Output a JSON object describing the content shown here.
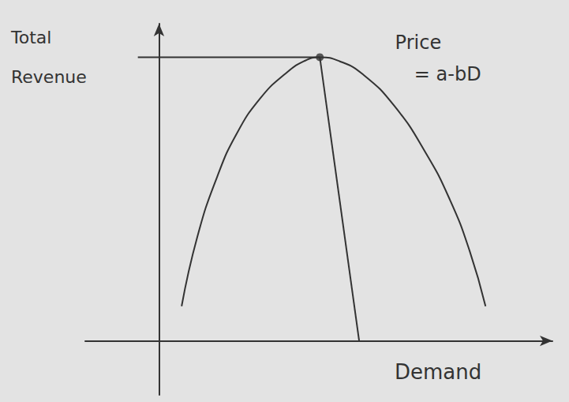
{
  "chart_data": {
    "type": "line",
    "x_label": "Demand",
    "y_label": "Total Revenue",
    "xlim": [
      -1.5,
      8
    ],
    "ylim": [
      -1.5,
      8.8
    ],
    "tick_labels": false,
    "grid": false,
    "color": "#333333",
    "series": [
      {
        "type": "line",
        "line_style": "smooth",
        "marker": "none",
        "x": [
          0.46,
          0.78,
          1.18,
          1.58,
          2.06,
          2.55,
          2.95,
          3.27,
          3.67,
          4.15,
          4.79,
          5.43,
          5.92,
          6.32,
          6.64
        ],
        "values": [
          0.96,
          2.89,
          4.54,
          5.75,
          6.73,
          7.39,
          7.76,
          7.87,
          7.76,
          7.39,
          6.51,
          5.2,
          3.9,
          2.48,
          0.96
        ]
      },
      {
        "type": "line",
        "line_style": "solid",
        "marker": "none",
        "x": [
          -0.43,
          3.27
        ],
        "values": [
          7.87,
          7.87
        ]
      },
      {
        "type": "line",
        "line_style": "solid",
        "marker": "none",
        "x": [
          3.27,
          4.07
        ],
        "values": [
          7.87,
          0
        ]
      },
      {
        "type": "scatter",
        "marker": "circle",
        "x": [
          3.27
        ],
        "values": [
          7.87
        ]
      }
    ],
    "annotations": [
      {
        "text": "Price",
        "x": 5.27,
        "y": 8.27
      },
      {
        "text": "= a-bD",
        "x": 5.87,
        "y": 7.39
      }
    ]
  }
}
